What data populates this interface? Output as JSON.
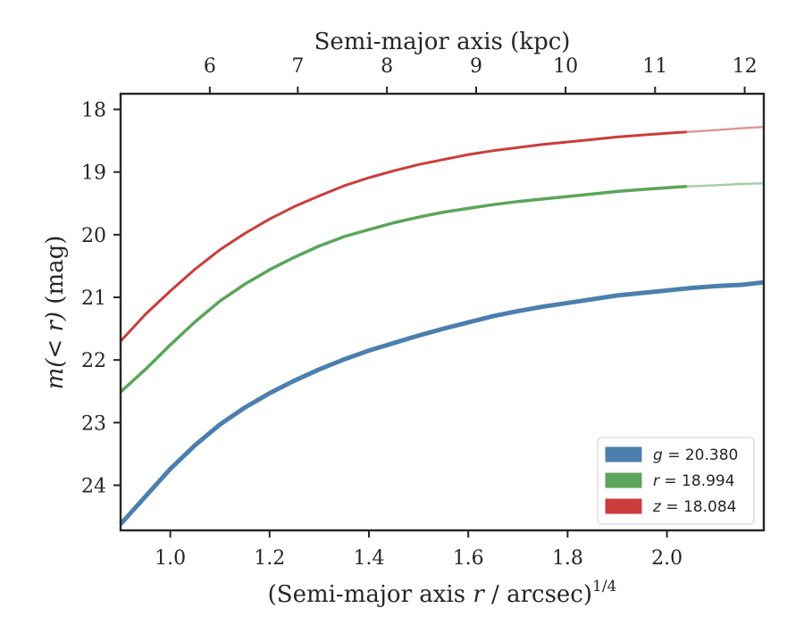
{
  "chart_data": {
    "type": "line",
    "xlabel_prefix": "(Semi-major axis ",
    "xlabel_var": "r",
    "xlabel_suffix": " / arcsec)",
    "xlabel_exp": "1/4",
    "top_xlabel": "Semi-major axis (kpc)",
    "ylabel_var": "m(< r)",
    "ylabel_unit": " (mag)",
    "xlim": [
      0.9,
      2.195
    ],
    "ylim": [
      24.72,
      17.75
    ],
    "y_inverted": true,
    "x_ticks": [
      1.0,
      1.2,
      1.4,
      1.6,
      1.8,
      2.0
    ],
    "x_tick_labels": [
      "1.0",
      "1.2",
      "1.4",
      "1.6",
      "1.8",
      "2.0"
    ],
    "y_ticks": [
      18,
      19,
      20,
      21,
      22,
      23,
      24
    ],
    "y_tick_labels": [
      "18",
      "19",
      "20",
      "21",
      "22",
      "23",
      "24"
    ],
    "top_ticks": [
      6,
      7,
      8,
      9,
      10,
      11,
      12
    ],
    "top_tick_labels": [
      "6",
      "7",
      "8",
      "9",
      "10",
      "11",
      "12"
    ],
    "top_ticks_x": [
      1.0796,
      1.2567,
      1.4362,
      1.6159,
      1.7959,
      1.9761,
      2.1565
    ],
    "grid": false,
    "legend_position": "lower-right",
    "series": [
      {
        "name": "g = 20.380",
        "legend_var": "g",
        "legend_value": "= 20.380",
        "color": "#4c7fae",
        "faded_after_x": null,
        "x": [
          0.9,
          0.95,
          1.0,
          1.05,
          1.1,
          1.15,
          1.2,
          1.25,
          1.3,
          1.35,
          1.4,
          1.45,
          1.5,
          1.55,
          1.6,
          1.65,
          1.7,
          1.75,
          1.8,
          1.85,
          1.9,
          1.95,
          2.0,
          2.05,
          2.1,
          2.15,
          2.195
        ],
        "y": [
          24.62,
          24.18,
          23.74,
          23.36,
          23.03,
          22.76,
          22.53,
          22.33,
          22.15,
          21.99,
          21.85,
          21.73,
          21.61,
          21.5,
          21.4,
          21.3,
          21.22,
          21.15,
          21.09,
          21.03,
          20.97,
          20.93,
          20.89,
          20.85,
          20.82,
          20.8,
          20.76
        ]
      },
      {
        "name": "r = 18.994",
        "legend_var": "r",
        "legend_value": "= 18.994",
        "color": "#5aa55a",
        "faded_after_x": 2.04,
        "x": [
          0.9,
          0.95,
          1.0,
          1.05,
          1.1,
          1.15,
          1.2,
          1.25,
          1.3,
          1.35,
          1.4,
          1.45,
          1.5,
          1.55,
          1.6,
          1.65,
          1.7,
          1.75,
          1.8,
          1.85,
          1.9,
          1.95,
          2.0,
          2.04,
          2.1,
          2.15,
          2.195
        ],
        "y": [
          22.51,
          22.15,
          21.76,
          21.39,
          21.06,
          20.79,
          20.56,
          20.36,
          20.18,
          20.03,
          19.92,
          19.81,
          19.72,
          19.64,
          19.58,
          19.52,
          19.47,
          19.43,
          19.39,
          19.35,
          19.31,
          19.28,
          19.25,
          19.23,
          19.21,
          19.19,
          19.18
        ]
      },
      {
        "name": "z = 18.084",
        "legend_var": "z",
        "legend_value": "= 18.084",
        "color": "#cc3c3c",
        "faded_after_x": 2.04,
        "x": [
          0.9,
          0.95,
          1.0,
          1.05,
          1.1,
          1.15,
          1.2,
          1.25,
          1.3,
          1.35,
          1.4,
          1.45,
          1.5,
          1.55,
          1.6,
          1.65,
          1.7,
          1.75,
          1.8,
          1.85,
          1.9,
          1.95,
          2.0,
          2.04,
          2.1,
          2.15,
          2.195
        ],
        "y": [
          21.7,
          21.27,
          20.9,
          20.55,
          20.24,
          19.98,
          19.75,
          19.55,
          19.38,
          19.22,
          19.09,
          18.98,
          18.88,
          18.8,
          18.72,
          18.66,
          18.61,
          18.56,
          18.52,
          18.48,
          18.44,
          18.41,
          18.38,
          18.36,
          18.33,
          18.3,
          18.28
        ]
      }
    ]
  }
}
